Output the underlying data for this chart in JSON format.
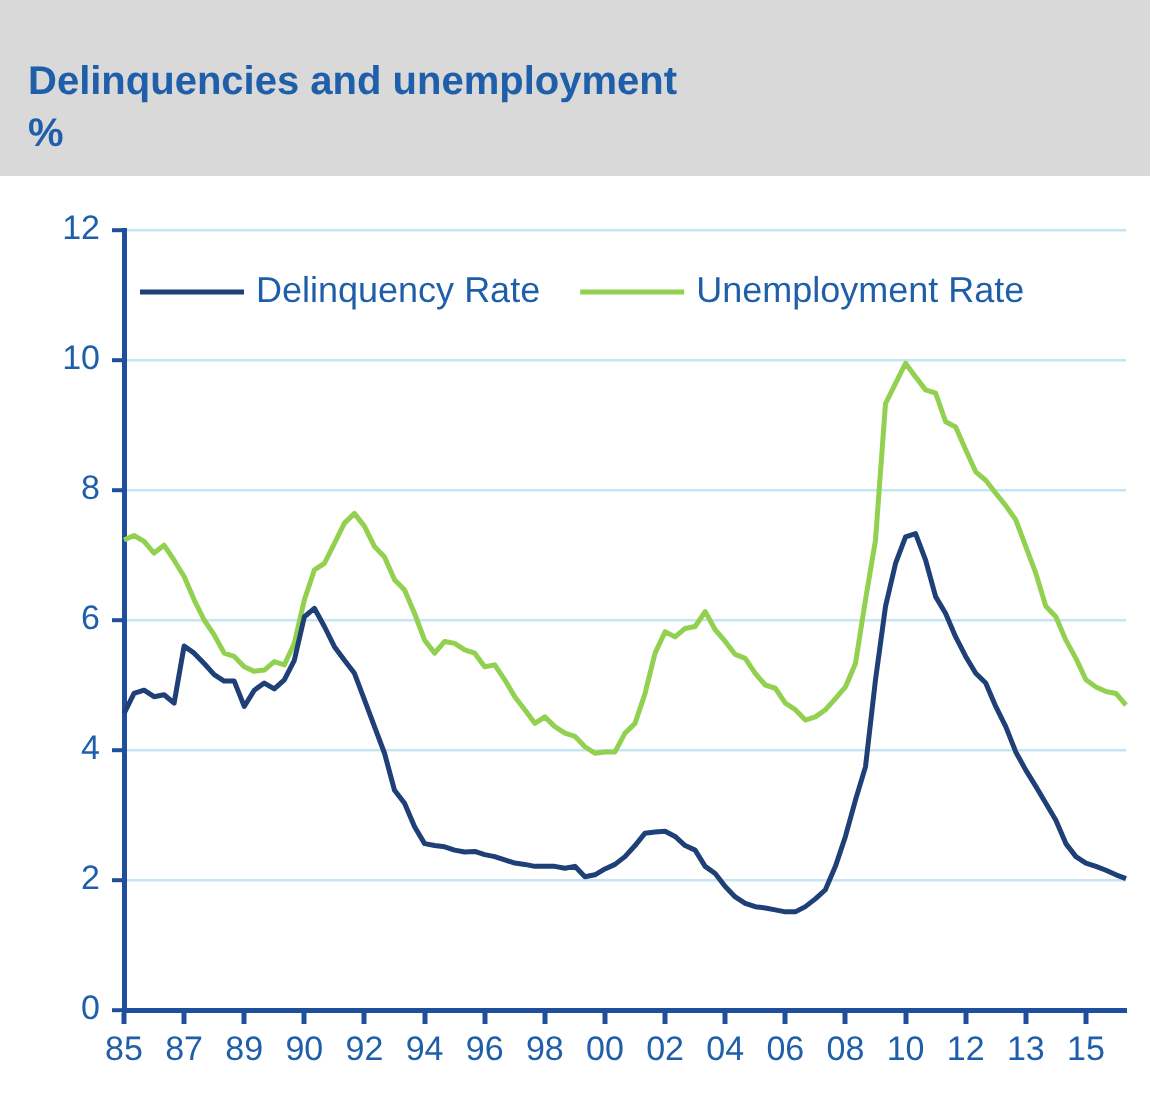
{
  "chart_data": {
    "type": "line",
    "title": "Delinquencies and unemployment",
    "subtitle": "%",
    "categories": [
      "85",
      null,
      null,
      null,
      null,
      null,
      "87",
      null,
      null,
      null,
      null,
      null,
      "89",
      null,
      null,
      null,
      null,
      null,
      "90",
      null,
      null,
      null,
      null,
      null,
      "92",
      null,
      null,
      null,
      null,
      null,
      "94",
      null,
      null,
      null,
      null,
      null,
      "96",
      null,
      null,
      null,
      null,
      null,
      "98",
      null,
      null,
      null,
      null,
      null,
      "00",
      null,
      null,
      null,
      null,
      null,
      "02",
      null,
      null,
      null,
      null,
      null,
      "04",
      null,
      null,
      null,
      null,
      null,
      "06",
      null,
      null,
      null,
      null,
      null,
      "08",
      null,
      null,
      null,
      null,
      null,
      "10",
      null,
      null,
      null,
      null,
      null,
      "12",
      null,
      null,
      null,
      null,
      null,
      "13",
      null,
      null,
      null,
      null,
      null,
      "15",
      null,
      null,
      null,
      null
    ],
    "series": [
      {
        "name": "Delinquency Rate",
        "color": "#1f3f77",
        "values": [
          4.56,
          4.87,
          4.92,
          4.82,
          4.85,
          4.72,
          5.6,
          5.49,
          5.33,
          5.16,
          5.06,
          5.06,
          4.67,
          4.92,
          5.03,
          4.94,
          5.08,
          5.38,
          6.05,
          6.18,
          5.9,
          5.59,
          5.38,
          5.18,
          4.77,
          4.36,
          3.95,
          3.38,
          3.18,
          2.82,
          2.56,
          2.53,
          2.51,
          2.46,
          2.43,
          2.44,
          2.39,
          2.36,
          2.31,
          2.26,
          2.24,
          2.21,
          2.21,
          2.21,
          2.18,
          2.21,
          2.05,
          2.08,
          2.17,
          2.24,
          2.36,
          2.53,
          2.72,
          2.74,
          2.75,
          2.67,
          2.53,
          2.46,
          2.21,
          2.1,
          1.9,
          1.74,
          1.64,
          1.59,
          1.57,
          1.54,
          1.51,
          1.51,
          1.59,
          1.71,
          1.85,
          2.21,
          2.67,
          3.23,
          3.74,
          5.08,
          6.21,
          6.87,
          7.28,
          7.33,
          6.92,
          6.36,
          6.1,
          5.74,
          5.44,
          5.18,
          5.03,
          4.67,
          4.36,
          3.97,
          3.69,
          3.44,
          3.18,
          2.92,
          2.56,
          2.36,
          2.26,
          2.21,
          2.15,
          2.08,
          2.02
        ]
      },
      {
        "name": "Unemployment Rate",
        "color": "#92d050",
        "values": [
          7.23,
          7.3,
          7.21,
          7.03,
          7.15,
          6.92,
          6.67,
          6.31,
          6.0,
          5.77,
          5.49,
          5.44,
          5.28,
          5.21,
          5.23,
          5.36,
          5.31,
          5.64,
          6.31,
          6.77,
          6.87,
          7.18,
          7.49,
          7.64,
          7.44,
          7.13,
          6.97,
          6.62,
          6.46,
          6.1,
          5.69,
          5.49,
          5.67,
          5.64,
          5.54,
          5.49,
          5.28,
          5.31,
          5.08,
          4.82,
          4.62,
          4.41,
          4.51,
          4.36,
          4.26,
          4.21,
          4.05,
          3.95,
          3.97,
          3.97,
          4.26,
          4.41,
          4.87,
          5.49,
          5.82,
          5.74,
          5.87,
          5.9,
          6.13,
          5.85,
          5.67,
          5.47,
          5.41,
          5.18,
          5.0,
          4.95,
          4.72,
          4.62,
          4.46,
          4.51,
          4.62,
          4.79,
          4.97,
          5.33,
          6.31,
          7.23,
          9.33,
          9.64,
          9.95,
          9.74,
          9.54,
          9.49,
          9.05,
          8.97,
          8.62,
          8.28,
          8.15,
          7.95,
          7.76,
          7.54,
          7.13,
          6.72,
          6.21,
          6.05,
          5.69,
          5.41,
          5.08,
          4.97,
          4.9,
          4.87,
          4.69
        ]
      }
    ],
    "ylim": [
      0,
      12
    ],
    "yticks": [
      0,
      2,
      4,
      6,
      8,
      10,
      12
    ],
    "grid": "y",
    "legend": "top",
    "marker": "none",
    "line_style": "solid"
  }
}
